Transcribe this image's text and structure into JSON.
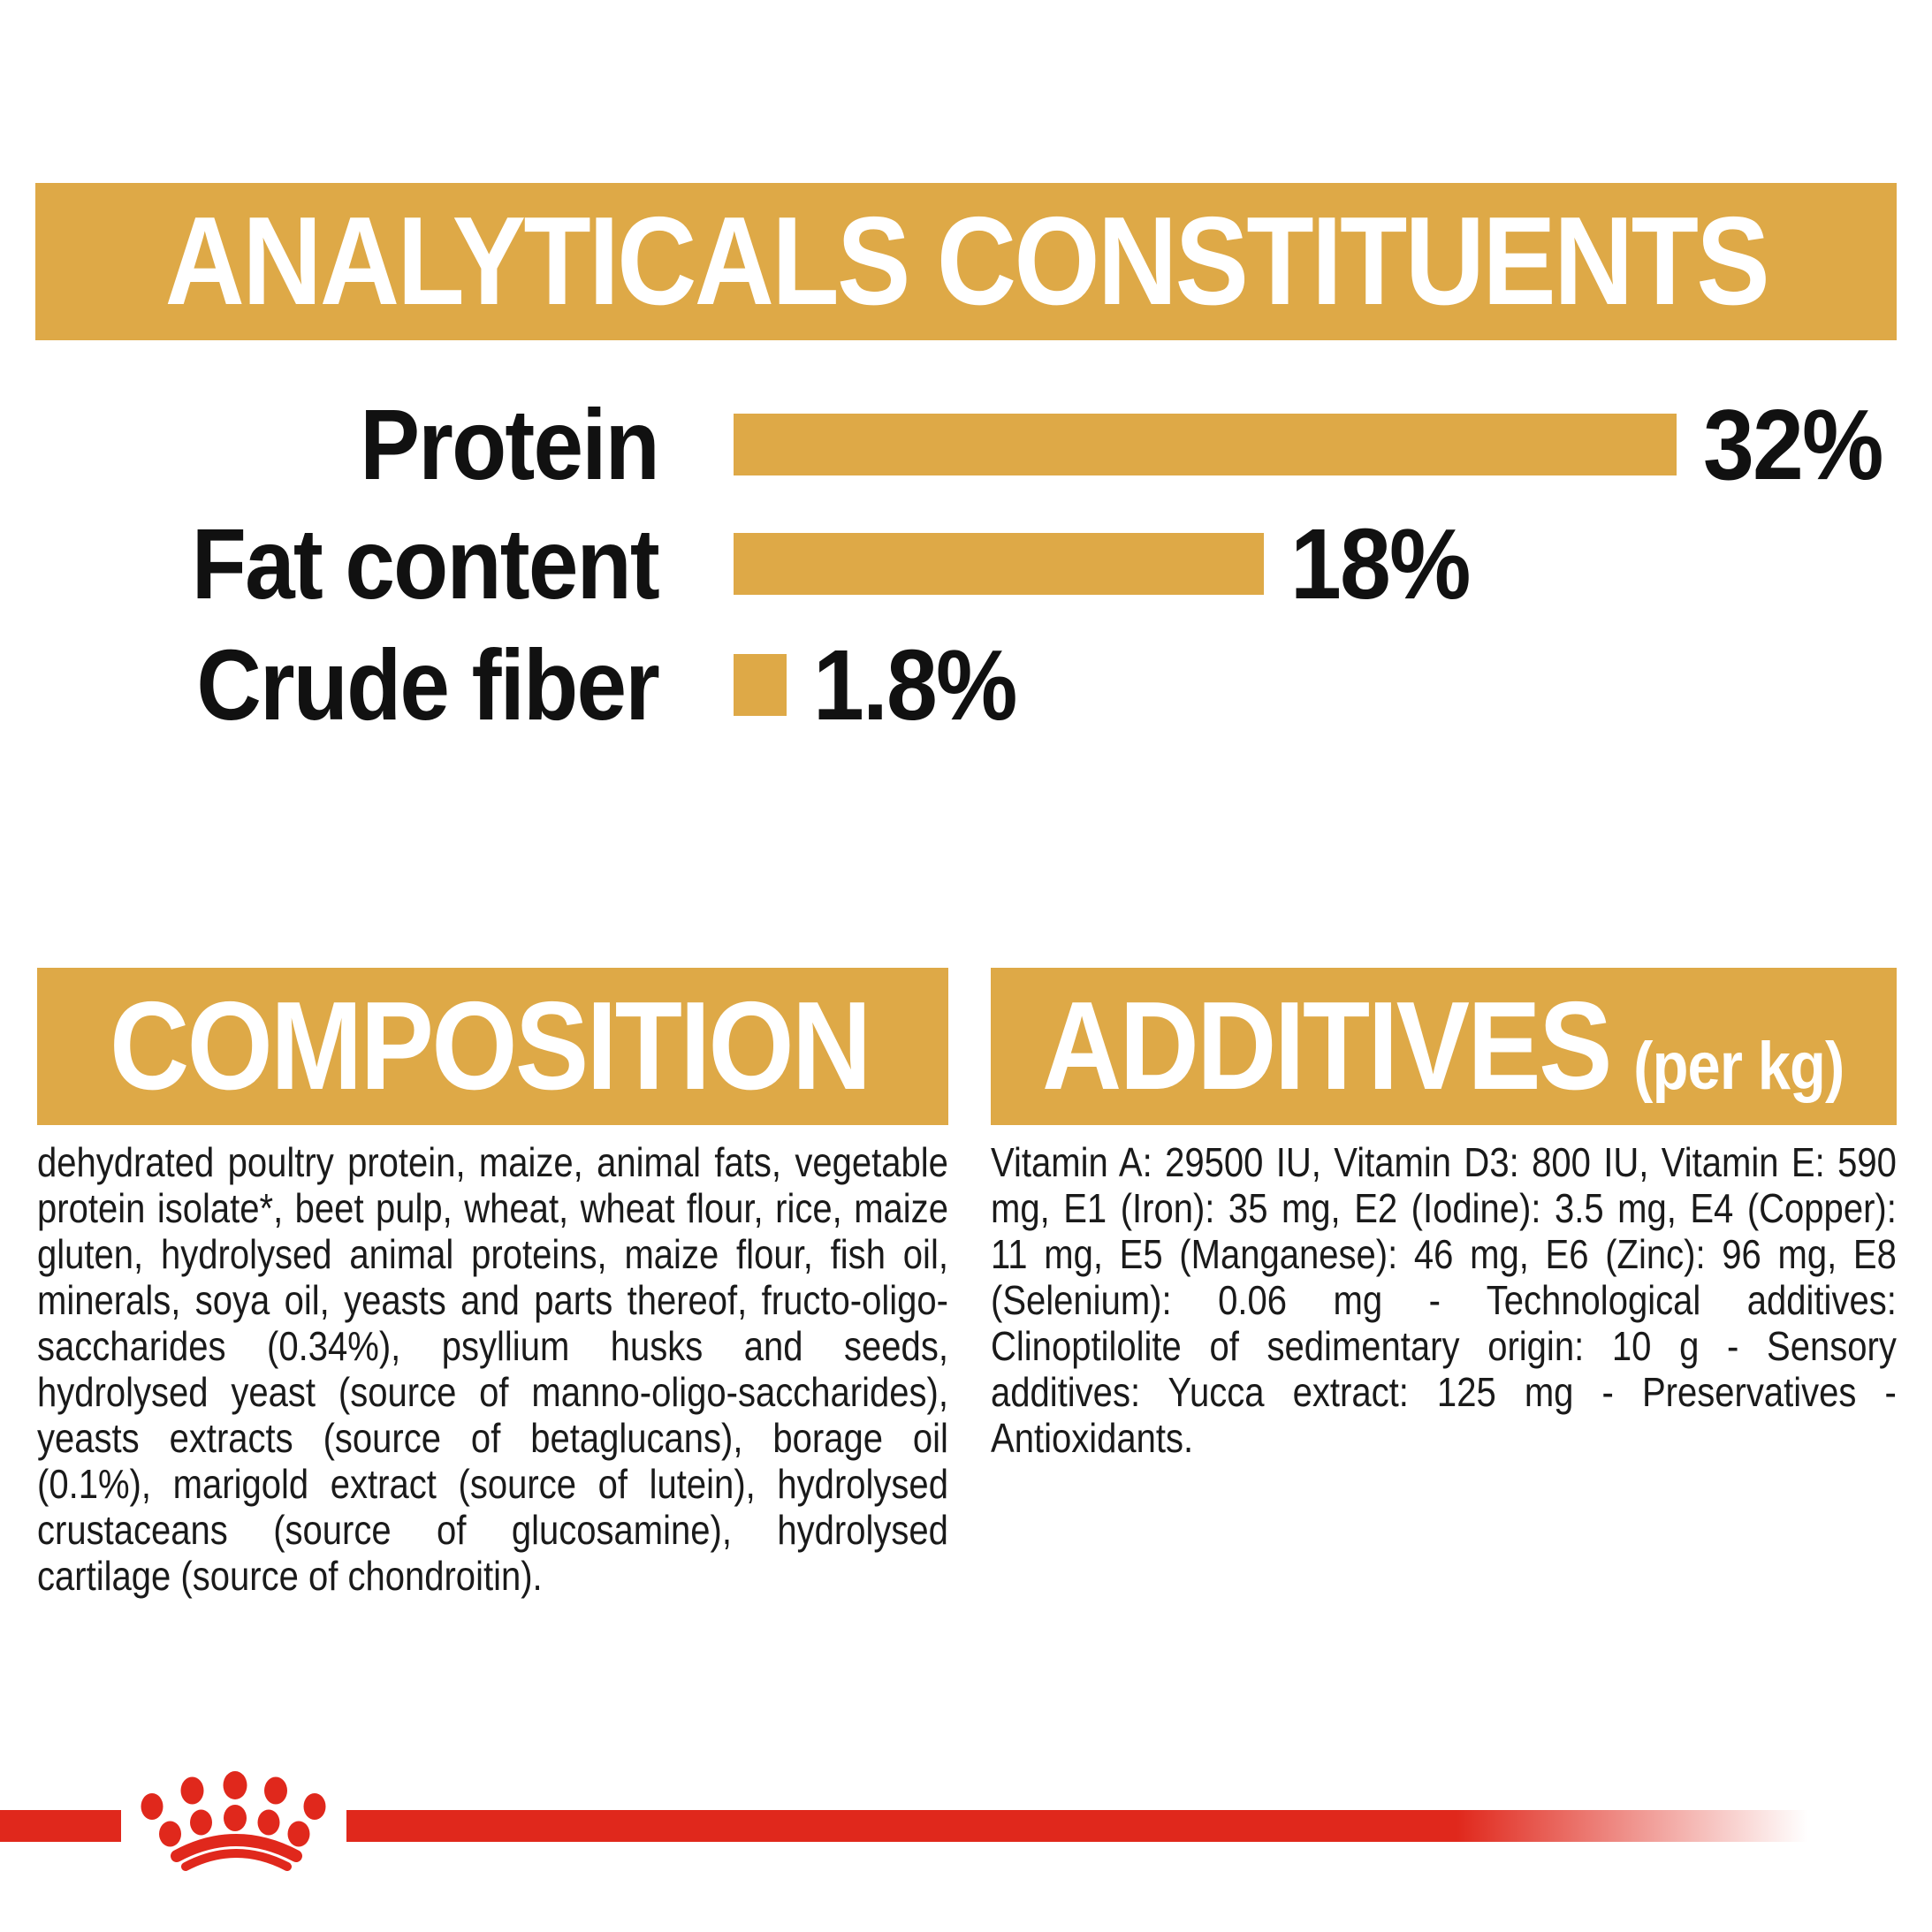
{
  "colors": {
    "gold": "#DEA947",
    "red": "#E0281C",
    "text": "#1A1A1A",
    "header_text": "#FFFFFF"
  },
  "analyticals": {
    "title": "ANALYTICALS CONSTITUENTS"
  },
  "chart_data": {
    "type": "bar",
    "orientation": "horizontal",
    "title": "ANALYTICALS CONSTITUENTS",
    "categories": [
      "Protein",
      "Fat content",
      "Crude fiber"
    ],
    "values": [
      32,
      18,
      1.8
    ],
    "value_labels": [
      "32%",
      "18%",
      "1.8%"
    ],
    "unit": "%",
    "xlim": [
      0,
      32
    ],
    "bar_color": "#DEA947",
    "grid": false,
    "legend": false
  },
  "composition": {
    "title": "COMPOSITION",
    "text": "dehydrated poultry protein, maize, animal fats, vegetable protein isolate*, beet pulp, wheat, wheat flour, rice, maize gluten, hydrolysed animal proteins, maize flour, fish oil, minerals, soya oil, yeasts and parts thereof, fructo-oligo-saccharides (0.34%), psyllium husks and seeds, hydrolysed yeast (source of manno-oligo-saccharides), yeasts extracts (source of betaglucans), borage oil (0.1%), marigold extract (source of lutein), hydrolysed crustaceans (source of glucosamine), hydrolysed cartilage (source of chondroitin)."
  },
  "additives": {
    "title": "ADDITIVES",
    "title_suffix": "(per kg)",
    "text": "Vitamin A: 29500 IU, Vitamin D3: 800 IU, Vitamin E: 590 mg, E1 (Iron): 35 mg, E2 (Iodine): 3.5 mg, E4 (Copper): 11 mg, E5 (Manganese): 46 mg, E6 (Zinc): 96 mg, E8 (Selenium): 0.06 mg - Technological additives: Clinoptilolite of sedimentary origin: 10 g - Sensory additives: Yucca extract: 125 mg - Preservatives - Antioxidants.",
    "per_kg_values": {
      "vitamin_a_iu": 29500,
      "vitamin_d3_iu": 800,
      "vitamin_e_mg": 590,
      "e1_iron_mg": 35,
      "e2_iodine_mg": 3.5,
      "e4_copper_mg": 11,
      "e5_manganese_mg": 46,
      "e6_zinc_mg": 96,
      "e8_selenium_mg": 0.06,
      "clinoptilolite_g": 10,
      "yucca_extract_mg": 125
    }
  },
  "footer": {
    "logo": "royal-canin-crown"
  }
}
